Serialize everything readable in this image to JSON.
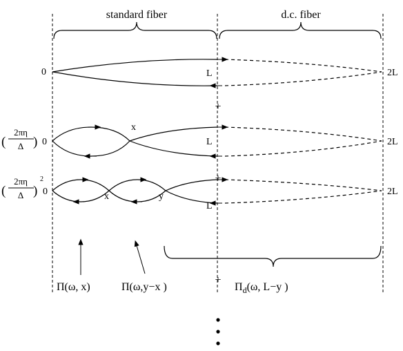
{
  "headers": {
    "standard": "standard fiber",
    "dc": "d.c. fiber"
  },
  "axis": {
    "zero": "0",
    "L": "L",
    "two_L": "2L"
  },
  "diagram_labels": {
    "x": "x",
    "y": "y",
    "plus": "+",
    "ellipsis": "⋮"
  },
  "prefactor": {
    "numerator": "2πη",
    "denominator": "Δ",
    "exponent": "2"
  },
  "propagators": {
    "pi_omega_x": "Π(ω, x)",
    "pi_omega_y_minus_x": "Π(ω,y−x )",
    "pi_d_symbol": "Π",
    "pi_d_subscript": "d",
    "pi_d_args": "(ω, L−y )"
  }
}
